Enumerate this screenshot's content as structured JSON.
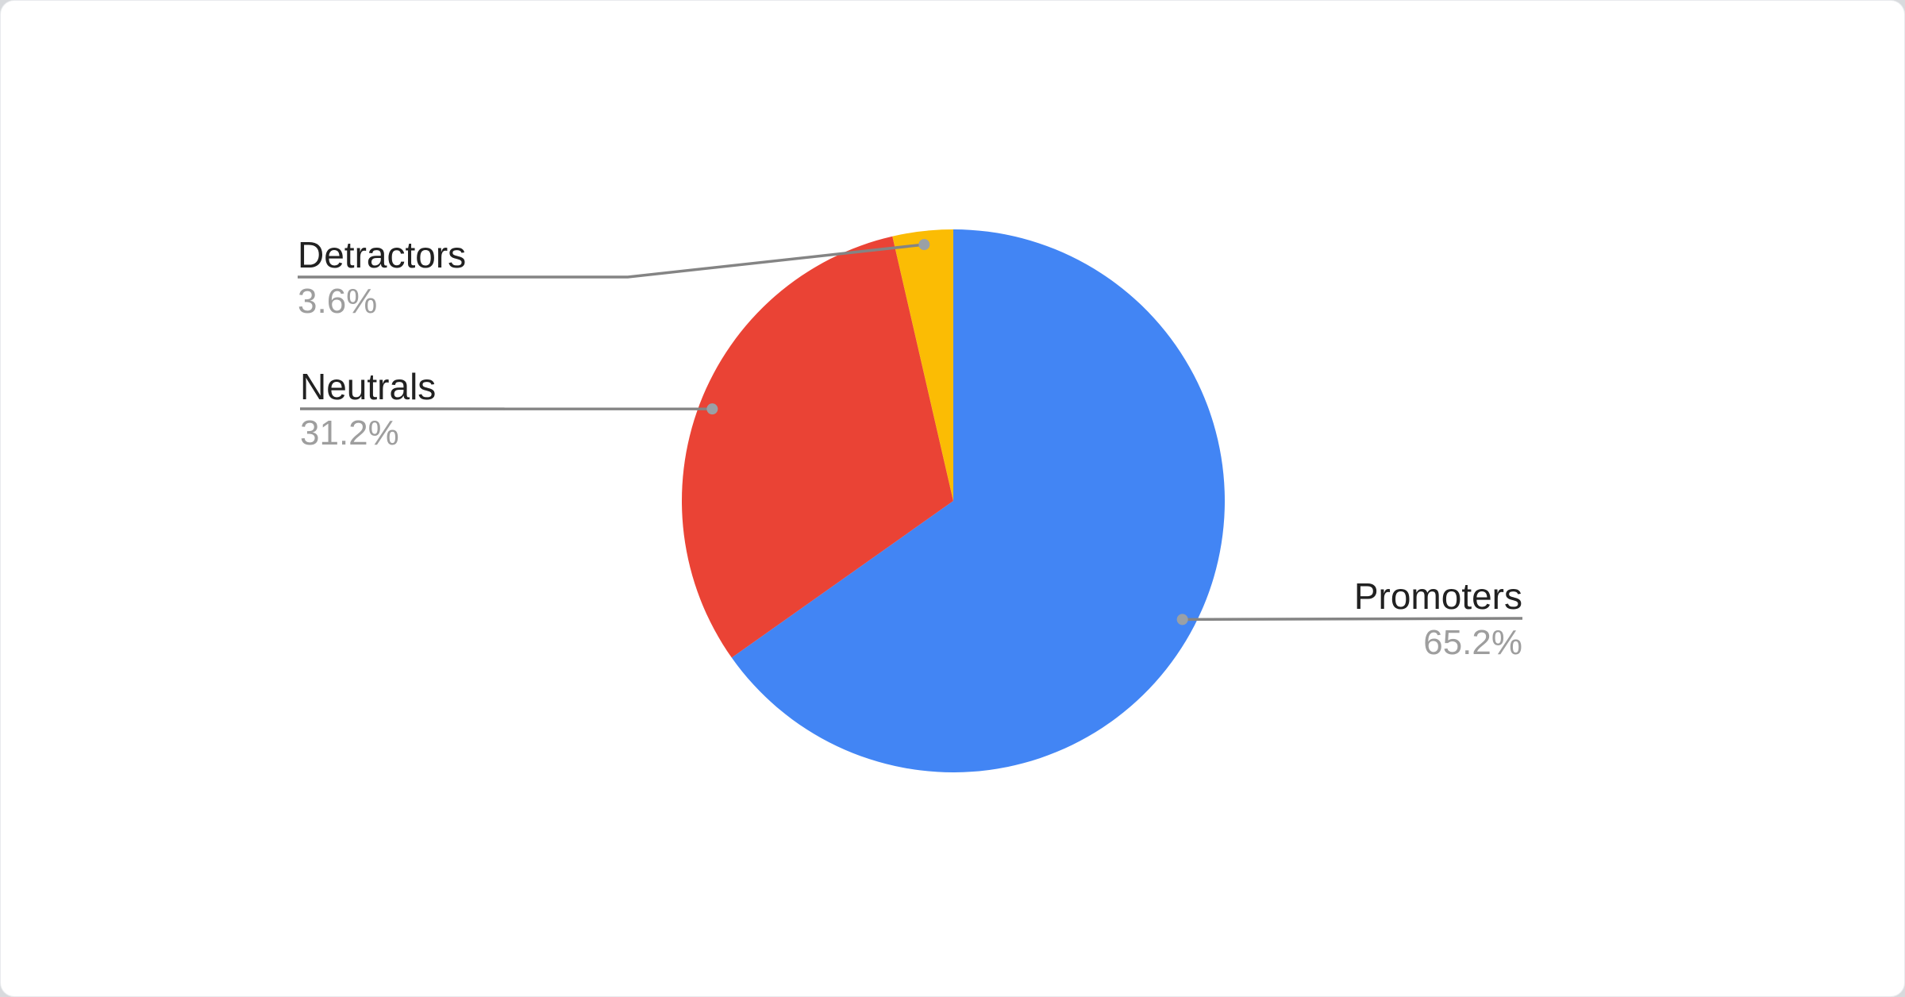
{
  "chart_data": {
    "type": "pie",
    "title": "",
    "legend_position": "labeled-callouts",
    "slices": [
      {
        "label": "Promoters",
        "value": 65.2,
        "display": "65.2%",
        "color": "#4285F4"
      },
      {
        "label": "Neutrals",
        "value": 31.2,
        "display": "31.2%",
        "color": "#EA4335"
      },
      {
        "label": "Detractors",
        "value": 3.6,
        "display": "3.6%",
        "color": "#FBBC04"
      }
    ],
    "start_angle_deg": 0,
    "direction": "clockwise",
    "colors": {
      "label_text": "#212121",
      "percent_text": "#9E9E9E",
      "leader_line": "#848484",
      "leader_dot": "#9AA0A6",
      "card_background": "#FFFFFF",
      "page_background": "#D8DADD"
    }
  }
}
